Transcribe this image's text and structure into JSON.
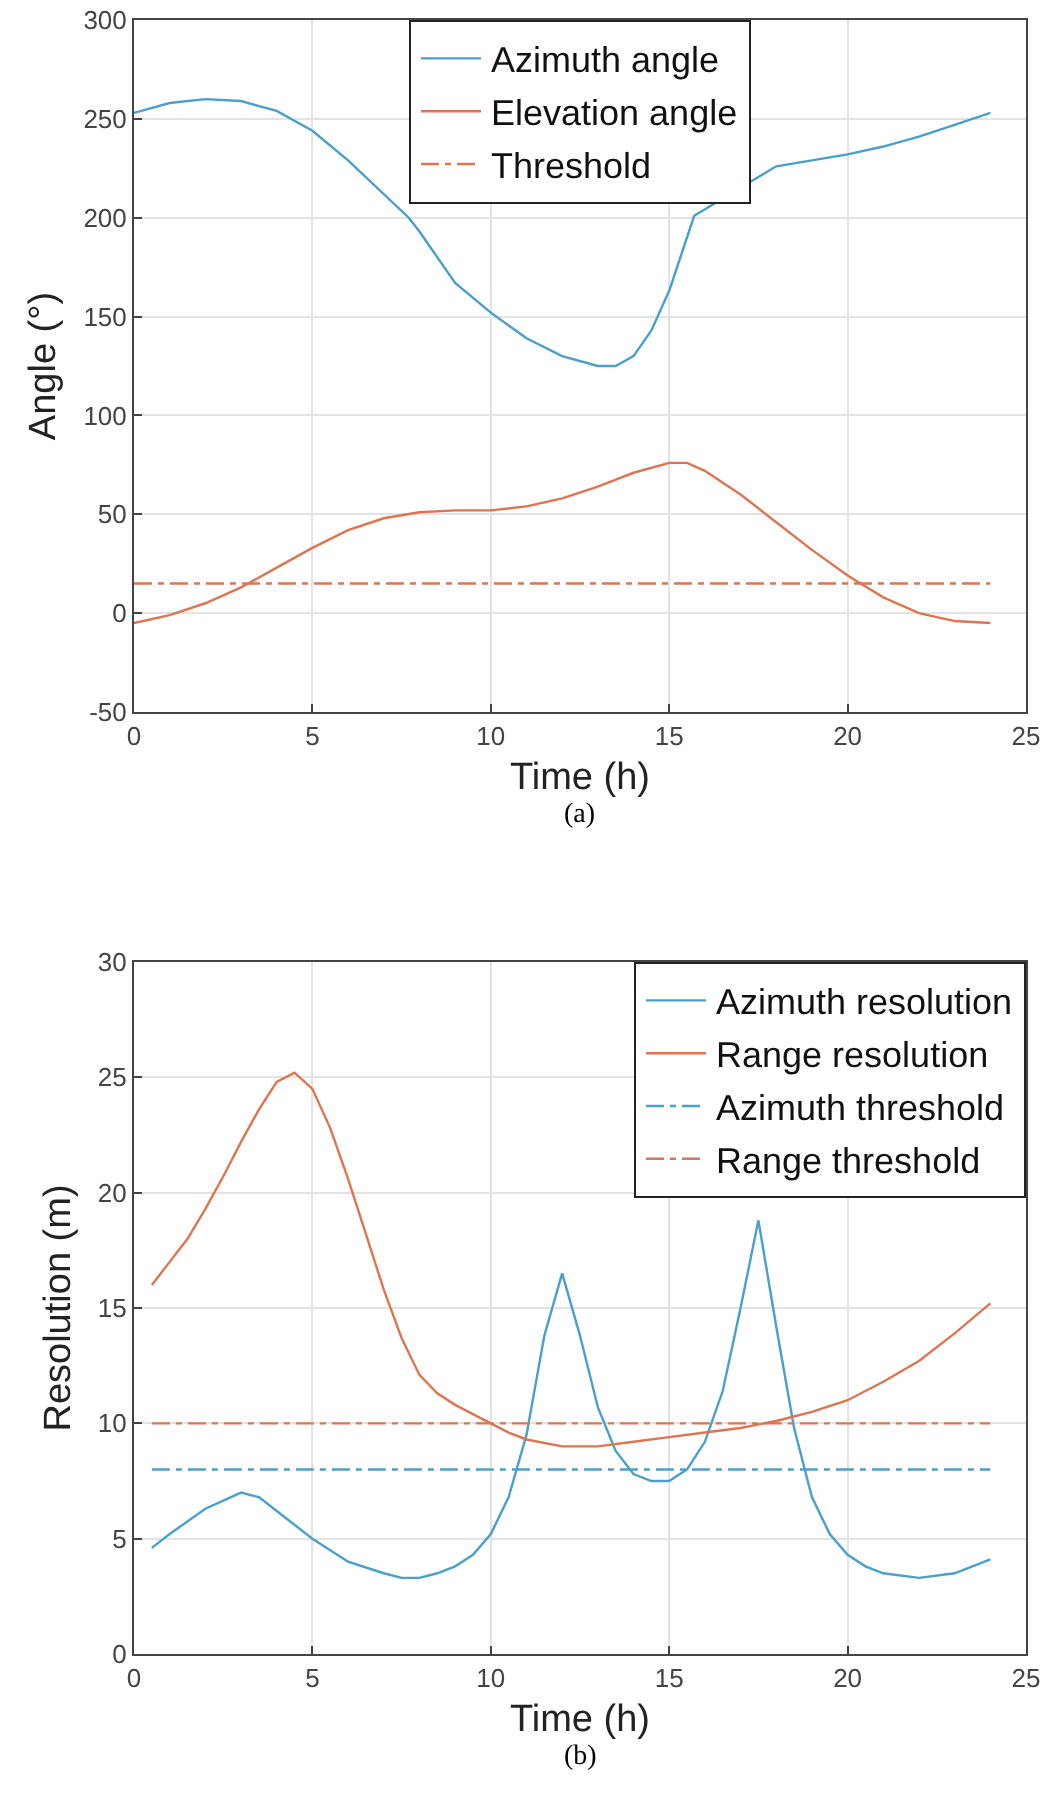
{
  "chart_data": [
    {
      "type": "line",
      "xlabel": "Time (h)",
      "ylabel": "Angle (°)",
      "xlim": [
        0,
        25
      ],
      "xticks": [
        0,
        5,
        10,
        15,
        20,
        25
      ],
      "ylim": [
        -50,
        300
      ],
      "yticks": [
        -50,
        0,
        50,
        100,
        150,
        200,
        250,
        300
      ],
      "grid": true,
      "legend": "top",
      "annotations": [
        "(a)"
      ],
      "series": [
        {
          "name": "Azimuth angle",
          "color": "#4a9fcc",
          "line_style": "solid",
          "x": [
            0,
            1,
            2,
            3,
            4,
            5,
            6,
            7.7,
            8,
            9,
            10,
            11,
            12,
            13,
            13.5,
            14,
            14.5,
            15,
            15.5,
            15.7,
            18,
            19,
            20,
            21,
            22,
            23,
            24
          ],
          "values": [
            253,
            258,
            260,
            259,
            254,
            244,
            229,
            200,
            193,
            167,
            152,
            139,
            130,
            125,
            125,
            130,
            143,
            163,
            190,
            201,
            226,
            229,
            232,
            236,
            241,
            247,
            253
          ]
        },
        {
          "name": "Elevation angle",
          "color": "#dd7550",
          "line_style": "solid",
          "x": [
            0,
            1,
            2,
            3,
            4,
            5,
            6,
            7,
            8,
            9,
            10,
            11,
            12,
            13,
            14,
            15,
            15.5,
            16,
            17,
            18,
            19,
            20,
            21,
            22,
            23,
            24
          ],
          "values": [
            -5,
            -1,
            5,
            13,
            23,
            33,
            42,
            48,
            51,
            52,
            52,
            54,
            58,
            64,
            71,
            76,
            76,
            72,
            60,
            46,
            32,
            19,
            8,
            0,
            -4,
            -5
          ]
        },
        {
          "name": "Threshold",
          "color": "#dd7550",
          "line_style": "dashdot",
          "x": [
            0,
            24
          ],
          "values": [
            15,
            15
          ]
        }
      ]
    },
    {
      "type": "line",
      "xlabel": "Time (h)",
      "ylabel": "Resolution (m)",
      "xlim": [
        0,
        25
      ],
      "xticks": [
        0,
        5,
        10,
        15,
        20,
        25
      ],
      "ylim": [
        0,
        30
      ],
      "yticks": [
        0,
        5,
        10,
        15,
        20,
        25,
        30
      ],
      "grid": true,
      "legend": "top right",
      "annotations": [
        "(b)"
      ],
      "series": [
        {
          "name": "Azimuth resolution",
          "color": "#4a9fcc",
          "line_style": "solid",
          "x": [
            0.5,
            1,
            2,
            3,
            3.5,
            4,
            5,
            6,
            7,
            7.5,
            8,
            8.5,
            9,
            9.5,
            10,
            10.5,
            11,
            11.5,
            12,
            12.5,
            13,
            13.5,
            14,
            14.5,
            15,
            15.5,
            16,
            16.5,
            17,
            17.5,
            18,
            18.5,
            19,
            19.5,
            20,
            20.5,
            21,
            22,
            23,
            24
          ],
          "values": [
            4.6,
            5.2,
            6.3,
            7.0,
            6.8,
            6.2,
            5.0,
            4.0,
            3.5,
            3.3,
            3.3,
            3.5,
            3.8,
            4.3,
            5.2,
            6.8,
            9.5,
            13.8,
            16.5,
            13.8,
            10.7,
            8.8,
            7.8,
            7.5,
            7.5,
            8.0,
            9.2,
            11.4,
            15.0,
            18.8,
            14.2,
            9.8,
            6.8,
            5.2,
            4.3,
            3.8,
            3.5,
            3.3,
            3.5,
            4.1
          ]
        },
        {
          "name": "Range resolution",
          "color": "#dd7550",
          "line_style": "solid",
          "x": [
            0.5,
            1,
            1.5,
            2,
            2.5,
            3,
            3.5,
            4,
            4.5,
            5,
            5.5,
            6,
            6.5,
            7,
            7.5,
            8,
            8.5,
            9,
            10,
            10.5,
            11,
            12,
            13,
            14,
            15,
            16,
            17,
            18,
            19,
            20,
            21,
            22,
            23,
            24
          ],
          "values": [
            16,
            17,
            18,
            19.3,
            20.7,
            22.2,
            23.6,
            24.8,
            25.2,
            24.5,
            22.8,
            20.6,
            18.2,
            15.8,
            13.7,
            12.1,
            11.3,
            10.8,
            10.0,
            9.6,
            9.3,
            9.0,
            9.0,
            9.2,
            9.4,
            9.6,
            9.8,
            10.1,
            10.5,
            11.0,
            11.8,
            12.7,
            13.9,
            15.2
          ]
        },
        {
          "name": "Azimuth threshold",
          "color": "#4a9fcc",
          "line_style": "dashdot",
          "x": [
            0.5,
            24
          ],
          "values": [
            8,
            8
          ]
        },
        {
          "name": "Range threshold",
          "color": "#dd7550",
          "line_style": "dashdot",
          "x": [
            0.5,
            24
          ],
          "values": [
            10,
            10
          ]
        }
      ]
    }
  ]
}
